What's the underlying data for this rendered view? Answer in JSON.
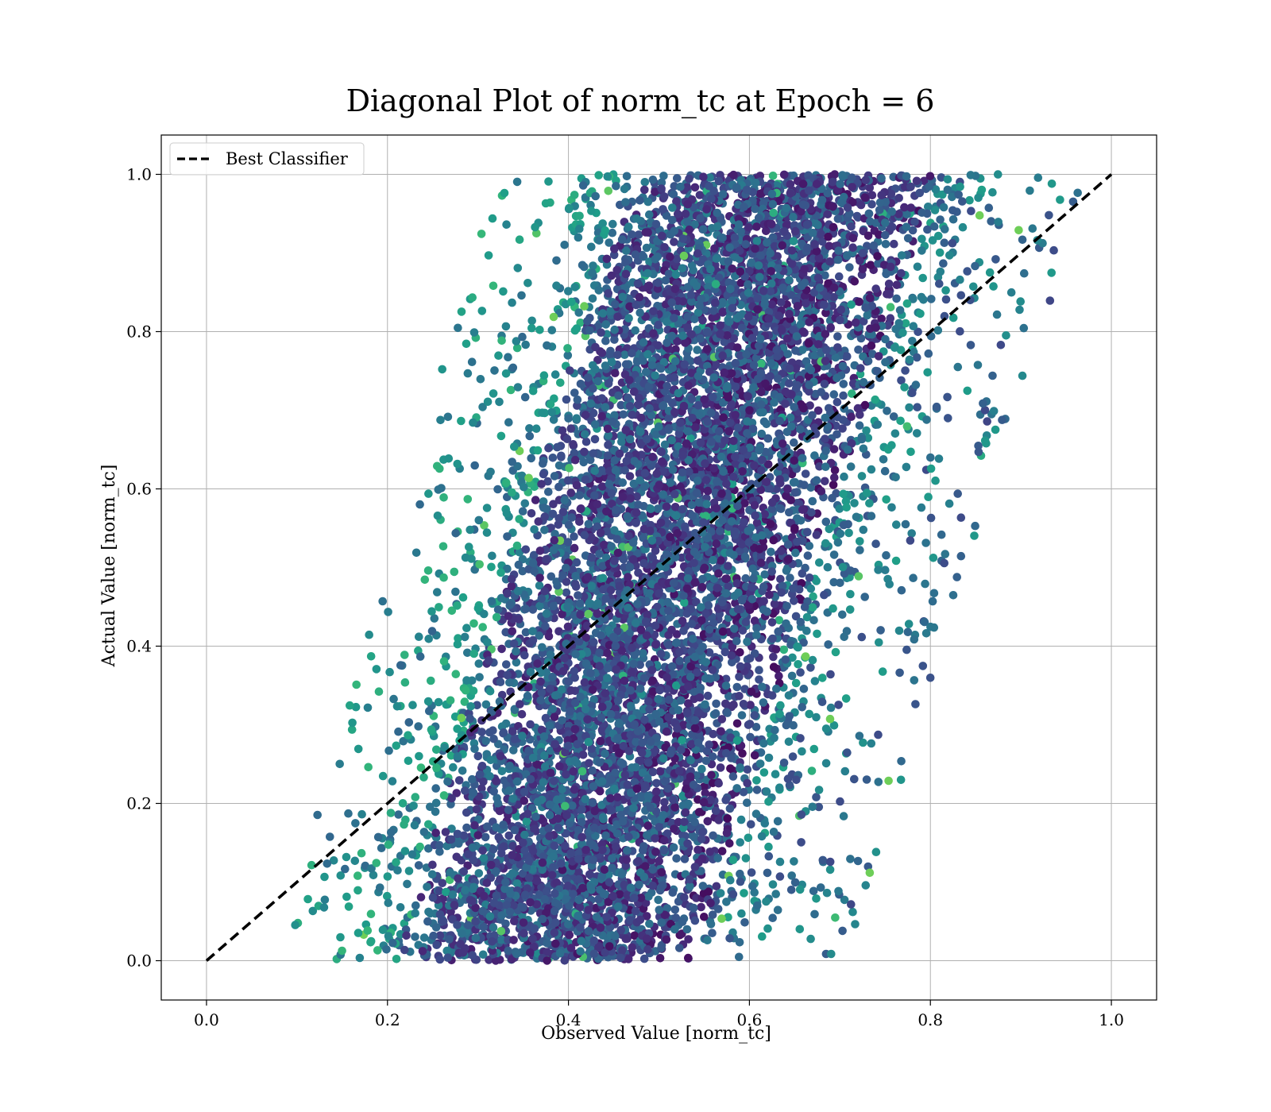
{
  "chart_data": {
    "type": "scatter",
    "title": "Diagonal Plot of norm_tc at Epoch = 6",
    "xlabel": "Observed Value [norm_tc]",
    "ylabel": "Actual Value [norm_tc]",
    "xlim": [
      -0.05,
      1.05
    ],
    "ylim": [
      -0.05,
      1.05
    ],
    "xticks": [
      0.0,
      0.2,
      0.4,
      0.6,
      0.8,
      1.0
    ],
    "yticks": [
      0.0,
      0.2,
      0.4,
      0.6,
      0.8,
      1.0
    ],
    "xtick_labels": [
      "0.0",
      "0.2",
      "0.4",
      "0.6",
      "0.8",
      "1.0"
    ],
    "ytick_labels": [
      "0.0",
      "0.2",
      "0.4",
      "0.6",
      "0.8",
      "1.0"
    ],
    "grid": true,
    "legend_position": "top-left",
    "colormap": "viridis",
    "point_cloud": {
      "description_of_extent": "y from 0.0 to 1.0; x band shifts from about 0.10-0.65 at y=0 to about 0.35-0.92 at y=1",
      "x_min_at_y0": 0.1,
      "x_max_at_y0": 0.65,
      "x_min_at_y1": 0.35,
      "x_max_at_y1": 0.92,
      "y_range": [
        0.0,
        1.0
      ]
    },
    "series": [
      {
        "name": "Best Classifier",
        "kind": "line",
        "style": "dashed",
        "color": "#000000",
        "x": [
          0.0,
          1.0
        ],
        "y": [
          0.0,
          1.0
        ]
      }
    ],
    "colors": {
      "viridis_dark": "#440154",
      "viridis_mid1": "#3b528b",
      "viridis_mid2": "#21918c",
      "viridis_light": "#5ec962"
    }
  }
}
